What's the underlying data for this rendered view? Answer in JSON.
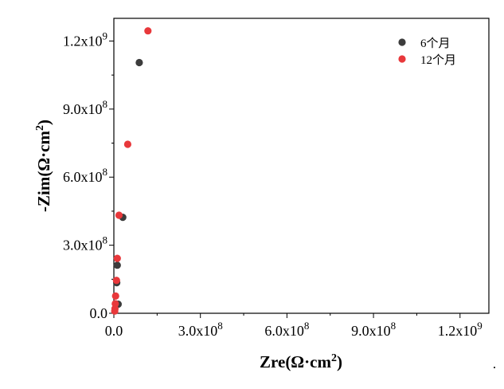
{
  "chart_data": {
    "type": "scatter",
    "xlabel": "Zre(Ω·cm²)",
    "ylabel": "-Zim(Ω·cm²)",
    "xlim": [
      0,
      1300000000.0
    ],
    "ylim": [
      0,
      1300000000.0
    ],
    "x_ticks": [
      {
        "value": 0,
        "label": "0.0"
      },
      {
        "value": 300000000.0,
        "label": "3.0x10",
        "exp": "8"
      },
      {
        "value": 600000000.0,
        "label": "6.0x10",
        "exp": "8"
      },
      {
        "value": 900000000.0,
        "label": "9.0x10",
        "exp": "8"
      },
      {
        "value": 1200000000.0,
        "label": "1.2x10",
        "exp": "9"
      }
    ],
    "y_ticks": [
      {
        "value": 0,
        "label": "0.0"
      },
      {
        "value": 300000000.0,
        "label": "3.0x10",
        "exp": "8"
      },
      {
        "value": 600000000.0,
        "label": "6.0x10",
        "exp": "8"
      },
      {
        "value": 900000000.0,
        "label": "9.0x10",
        "exp": "8"
      },
      {
        "value": 1200000000.0,
        "label": "1.2x10",
        "exp": "9"
      }
    ],
    "grid": false,
    "legend": "top-right",
    "series": [
      {
        "name": "6个月",
        "color": "#3c3c3c",
        "points": [
          [
            15000000.0,
            40000000.0
          ],
          [
            10000000.0,
            135000000.0
          ],
          [
            12000000.0,
            212000000.0
          ],
          [
            31000000.0,
            423000000.0
          ],
          [
            88000000.0,
            1105000000.0
          ]
        ]
      },
      {
        "name": "12个月",
        "color": "#e8383b",
        "points": [
          [
            3000000.0,
            10000000.0
          ],
          [
            4000000.0,
            20000000.0
          ],
          [
            5000000.0,
            42000000.0
          ],
          [
            6000000.0,
            76000000.0
          ],
          [
            9000000.0,
            145000000.0
          ],
          [
            12000000.0,
            242000000.0
          ],
          [
            18000000.0,
            432000000.0
          ],
          [
            48000000.0,
            745000000.0
          ],
          [
            118000000.0,
            1245000000.0
          ]
        ]
      }
    ]
  }
}
